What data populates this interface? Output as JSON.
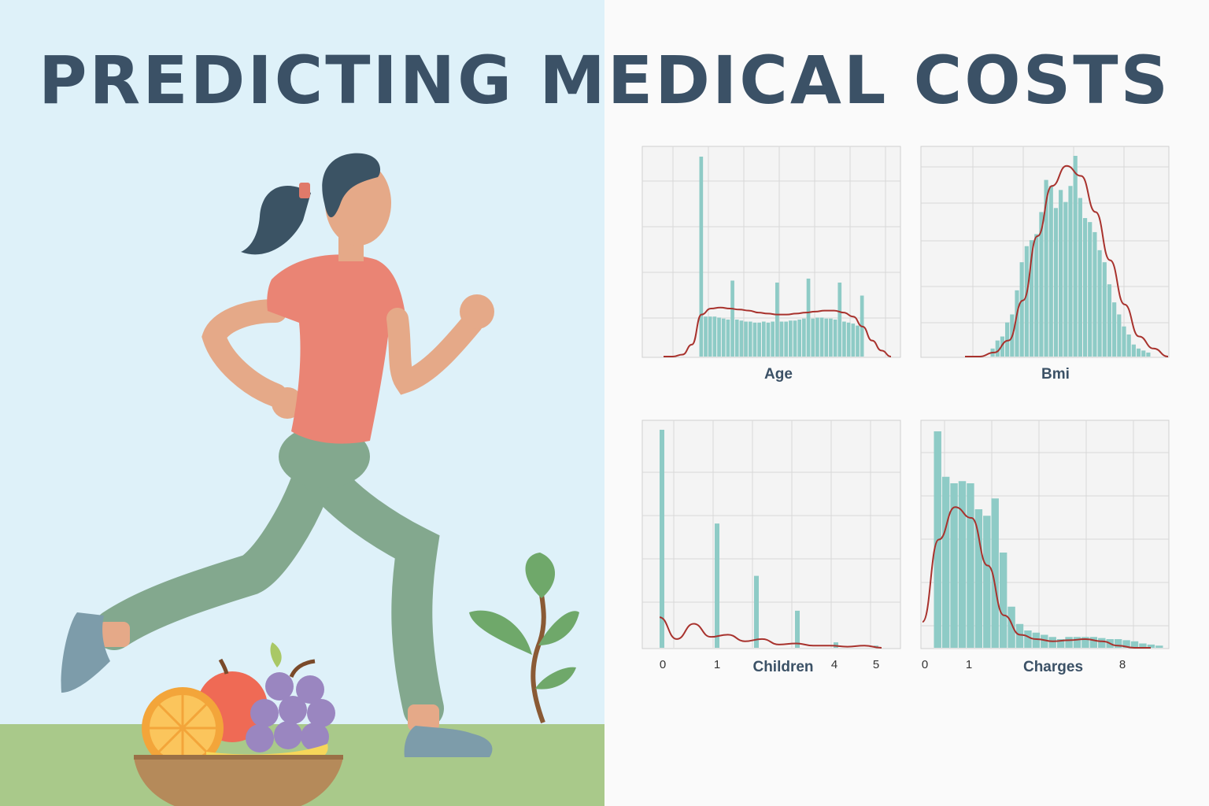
{
  "title": "PREDICTING MEDICAL COSTS",
  "colors": {
    "bar": "#8ecbc6",
    "kde": "#a8322d",
    "panel_bg": "#f4f4f4",
    "grid": "#d8d8d8",
    "title": "#3b5166",
    "sky": "#def1f9",
    "grass": "#a9c98a"
  },
  "illustration": {
    "icons": [
      "runner-woman-icon",
      "fruit-bowl-icon",
      "plant-sprout-icon"
    ]
  },
  "chart_data": [
    {
      "type": "histogram",
      "xlabel": "Age",
      "bins_relative": [
        1.0,
        0.2,
        0.2,
        0.2,
        0.195,
        0.19,
        0.185,
        0.38,
        0.185,
        0.18,
        0.175,
        0.175,
        0.17,
        0.17,
        0.175,
        0.17,
        0.175,
        0.37,
        0.175,
        0.175,
        0.18,
        0.18,
        0.185,
        0.19,
        0.39,
        0.19,
        0.195,
        0.195,
        0.19,
        0.19,
        0.185,
        0.37,
        0.175,
        0.17,
        0.165,
        0.155,
        0.305
      ],
      "kde_relative": [
        0.0,
        0.0,
        0.01,
        0.06,
        0.21,
        0.24,
        0.245,
        0.24,
        0.235,
        0.23,
        0.22,
        0.215,
        0.21,
        0.21,
        0.215,
        0.22,
        0.225,
        0.23,
        0.23,
        0.22,
        0.2,
        0.15,
        0.08,
        0.03,
        0.0
      ],
      "grid": true
    },
    {
      "type": "histogram",
      "xlabel": "Bmi",
      "bins_relative": [
        0.04,
        0.08,
        0.1,
        0.17,
        0.21,
        0.33,
        0.47,
        0.55,
        0.58,
        0.61,
        0.72,
        0.88,
        0.85,
        0.74,
        0.83,
        0.77,
        0.85,
        1.0,
        0.79,
        0.69,
        0.67,
        0.62,
        0.53,
        0.47,
        0.36,
        0.27,
        0.21,
        0.15,
        0.11,
        0.06,
        0.04,
        0.03,
        0.02
      ],
      "kde_relative": [
        0.0,
        0.0,
        0.02,
        0.08,
        0.28,
        0.6,
        0.85,
        0.95,
        0.9,
        0.72,
        0.48,
        0.26,
        0.1,
        0.04,
        0.0
      ],
      "grid": true
    },
    {
      "type": "histogram",
      "xlabel": "Children",
      "x_ticks": [
        "0",
        "1",
        "4",
        "5"
      ],
      "categories": [
        "0",
        "1",
        "2",
        "3",
        "4",
        "5"
      ],
      "values_relative": [
        1.0,
        0.57,
        0.33,
        0.17,
        0.025,
        0.01
      ],
      "kde_relative": [
        0.14,
        0.04,
        0.11,
        0.05,
        0.06,
        0.03,
        0.04,
        0.015,
        0.02,
        0.01,
        0.01,
        0.005,
        0.01,
        0.0
      ],
      "grid": true
    },
    {
      "type": "histogram",
      "xlabel": "Charges",
      "x_ticks": [
        "0",
        "1",
        "8"
      ],
      "bins_relative": [
        1.0,
        0.79,
        0.76,
        0.77,
        0.76,
        0.64,
        0.61,
        0.69,
        0.44,
        0.19,
        0.11,
        0.08,
        0.07,
        0.06,
        0.05,
        0.04,
        0.05,
        0.05,
        0.05,
        0.05,
        0.045,
        0.04,
        0.04,
        0.035,
        0.03,
        0.02,
        0.015,
        0.01
      ],
      "kde_relative": [
        0.12,
        0.5,
        0.65,
        0.6,
        0.38,
        0.15,
        0.06,
        0.04,
        0.03,
        0.035,
        0.04,
        0.03,
        0.01,
        0.0,
        0.0
      ],
      "grid": true
    }
  ]
}
